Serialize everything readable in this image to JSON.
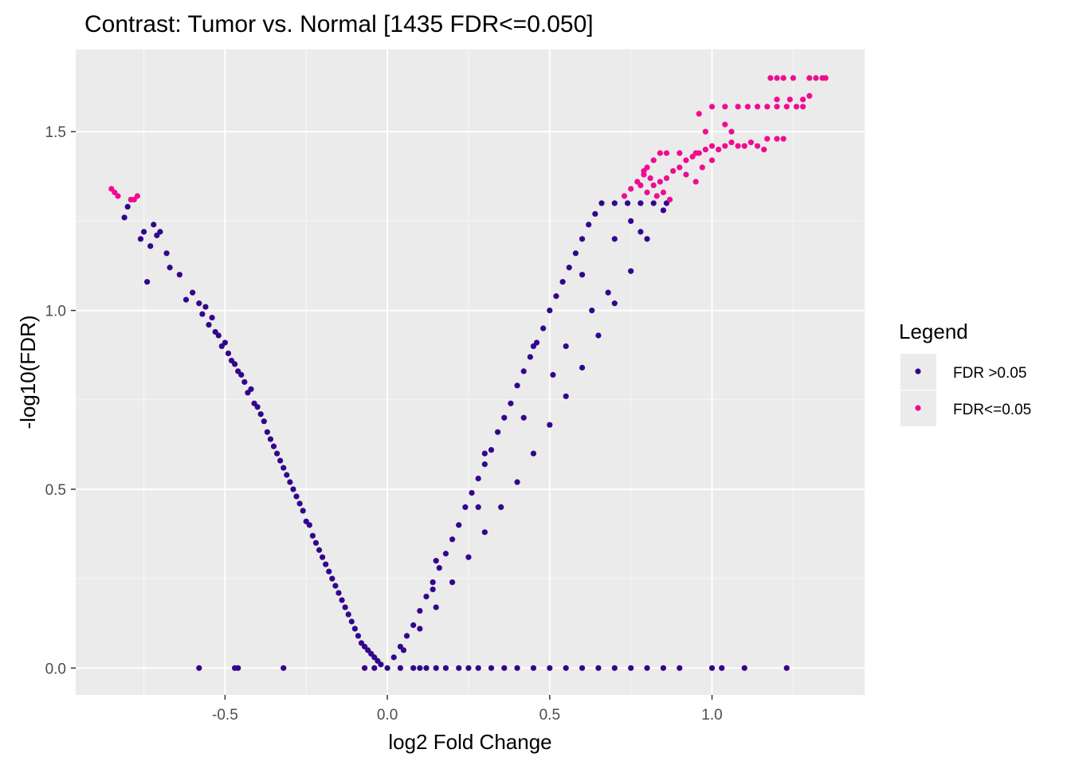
{
  "chart_data": {
    "type": "scatter",
    "title": "Contrast: Tumor vs. Normal  [1435 FDR<=0.050]",
    "xlabel": "log2 Fold Change",
    "ylabel": "-log10(FDR)",
    "xlim": [
      -0.96,
      1.47
    ],
    "ylim": [
      -0.075,
      1.73
    ],
    "x_ticks": [
      -0.5,
      0.0,
      0.5,
      1.0
    ],
    "x_tick_labels": [
      "-0.5",
      "0.0",
      "0.5",
      "1.0"
    ],
    "y_ticks": [
      0.0,
      0.5,
      1.0,
      1.5
    ],
    "y_tick_labels": [
      "0.0",
      "0.5",
      "1.0",
      "1.5"
    ],
    "grid": true,
    "panel_background": "#ebebeb",
    "legend": {
      "title": "Legend",
      "position": "right",
      "entries": [
        {
          "label": "FDR >0.05",
          "color": "#33058c"
        },
        {
          "label": "FDR<=0.05",
          "color": "#f00c8f"
        }
      ]
    },
    "series": [
      {
        "name": "FDR >0.05",
        "color": "#33058c",
        "points": [
          [
            -0.58,
            0.0
          ],
          [
            -0.47,
            0.0
          ],
          [
            -0.46,
            0.0
          ],
          [
            -0.32,
            0.0
          ],
          [
            -0.07,
            0.0
          ],
          [
            -0.04,
            0.0
          ],
          [
            0.04,
            0.0
          ],
          [
            0.08,
            0.0
          ],
          [
            0.1,
            0.0
          ],
          [
            0.12,
            0.0
          ],
          [
            0.15,
            0.0
          ],
          [
            0.18,
            0.0
          ],
          [
            0.22,
            0.0
          ],
          [
            0.25,
            0.0
          ],
          [
            0.28,
            0.0
          ],
          [
            0.32,
            0.0
          ],
          [
            0.36,
            0.0
          ],
          [
            0.4,
            0.0
          ],
          [
            0.45,
            0.0
          ],
          [
            0.5,
            0.0
          ],
          [
            0.55,
            0.0
          ],
          [
            0.6,
            0.0
          ],
          [
            0.65,
            0.0
          ],
          [
            0.7,
            0.0
          ],
          [
            0.75,
            0.0
          ],
          [
            0.8,
            0.0
          ],
          [
            0.85,
            0.0
          ],
          [
            0.9,
            0.0
          ],
          [
            1.0,
            0.0
          ],
          [
            1.03,
            0.0
          ],
          [
            1.1,
            0.0
          ],
          [
            1.23,
            0.0
          ],
          [
            -0.81,
            1.26
          ],
          [
            -0.8,
            1.29
          ],
          [
            -0.76,
            1.2
          ],
          [
            -0.75,
            1.22
          ],
          [
            -0.73,
            1.18
          ],
          [
            -0.72,
            1.24
          ],
          [
            -0.71,
            1.21
          ],
          [
            -0.7,
            1.22
          ],
          [
            -0.74,
            1.08
          ],
          [
            -0.68,
            1.16
          ],
          [
            -0.67,
            1.12
          ],
          [
            -0.64,
            1.1
          ],
          [
            -0.62,
            1.03
          ],
          [
            -0.6,
            1.05
          ],
          [
            -0.58,
            1.02
          ],
          [
            -0.57,
            0.99
          ],
          [
            -0.56,
            1.01
          ],
          [
            -0.55,
            0.96
          ],
          [
            -0.54,
            0.98
          ],
          [
            -0.53,
            0.94
          ],
          [
            -0.52,
            0.93
          ],
          [
            -0.51,
            0.9
          ],
          [
            -0.5,
            0.91
          ],
          [
            -0.49,
            0.88
          ],
          [
            -0.48,
            0.86
          ],
          [
            -0.47,
            0.85
          ],
          [
            -0.46,
            0.83
          ],
          [
            -0.45,
            0.82
          ],
          [
            -0.44,
            0.8
          ],
          [
            -0.43,
            0.77
          ],
          [
            -0.42,
            0.78
          ],
          [
            -0.41,
            0.74
          ],
          [
            -0.4,
            0.73
          ],
          [
            -0.39,
            0.71
          ],
          [
            -0.38,
            0.69
          ],
          [
            -0.37,
            0.66
          ],
          [
            -0.36,
            0.64
          ],
          [
            -0.35,
            0.62
          ],
          [
            -0.34,
            0.6
          ],
          [
            -0.33,
            0.58
          ],
          [
            -0.32,
            0.56
          ],
          [
            -0.31,
            0.54
          ],
          [
            -0.3,
            0.52
          ],
          [
            -0.29,
            0.5
          ],
          [
            -0.28,
            0.48
          ],
          [
            -0.27,
            0.46
          ],
          [
            -0.26,
            0.44
          ],
          [
            -0.25,
            0.41
          ],
          [
            -0.24,
            0.4
          ],
          [
            -0.23,
            0.37
          ],
          [
            -0.22,
            0.35
          ],
          [
            -0.21,
            0.33
          ],
          [
            -0.2,
            0.31
          ],
          [
            -0.19,
            0.29
          ],
          [
            -0.18,
            0.27
          ],
          [
            -0.17,
            0.25
          ],
          [
            -0.16,
            0.23
          ],
          [
            -0.15,
            0.21
          ],
          [
            -0.14,
            0.19
          ],
          [
            -0.13,
            0.17
          ],
          [
            -0.12,
            0.15
          ],
          [
            -0.11,
            0.13
          ],
          [
            -0.1,
            0.11
          ],
          [
            -0.09,
            0.09
          ],
          [
            -0.08,
            0.07
          ],
          [
            -0.07,
            0.06
          ],
          [
            -0.06,
            0.05
          ],
          [
            -0.05,
            0.04
          ],
          [
            -0.04,
            0.03
          ],
          [
            -0.03,
            0.02
          ],
          [
            -0.02,
            0.01
          ],
          [
            0.0,
            0.0
          ],
          [
            0.02,
            0.03
          ],
          [
            0.04,
            0.06
          ],
          [
            0.06,
            0.09
          ],
          [
            0.08,
            0.12
          ],
          [
            0.1,
            0.16
          ],
          [
            0.12,
            0.2
          ],
          [
            0.14,
            0.24
          ],
          [
            0.16,
            0.28
          ],
          [
            0.18,
            0.32
          ],
          [
            0.2,
            0.36
          ],
          [
            0.22,
            0.4
          ],
          [
            0.24,
            0.45
          ],
          [
            0.26,
            0.49
          ],
          [
            0.28,
            0.53
          ],
          [
            0.3,
            0.57
          ],
          [
            0.32,
            0.61
          ],
          [
            0.34,
            0.66
          ],
          [
            0.36,
            0.7
          ],
          [
            0.38,
            0.74
          ],
          [
            0.4,
            0.79
          ],
          [
            0.42,
            0.83
          ],
          [
            0.44,
            0.87
          ],
          [
            0.46,
            0.91
          ],
          [
            0.48,
            0.95
          ],
          [
            0.5,
            1.0
          ],
          [
            0.52,
            1.04
          ],
          [
            0.54,
            1.08
          ],
          [
            0.56,
            1.12
          ],
          [
            0.58,
            1.16
          ],
          [
            0.6,
            1.2
          ],
          [
            0.62,
            1.24
          ],
          [
            0.64,
            1.27
          ],
          [
            0.66,
            1.3
          ],
          [
            0.7,
            1.3
          ],
          [
            0.74,
            1.3
          ],
          [
            0.78,
            1.3
          ],
          [
            0.82,
            1.3
          ],
          [
            0.86,
            1.3
          ],
          [
            0.85,
            1.28
          ],
          [
            0.8,
            1.2
          ],
          [
            0.75,
            1.11
          ],
          [
            0.7,
            1.02
          ],
          [
            0.65,
            0.93
          ],
          [
            0.6,
            0.84
          ],
          [
            0.55,
            0.76
          ],
          [
            0.5,
            0.68
          ],
          [
            0.45,
            0.6
          ],
          [
            0.4,
            0.52
          ],
          [
            0.35,
            0.45
          ],
          [
            0.3,
            0.38
          ],
          [
            0.25,
            0.31
          ],
          [
            0.2,
            0.24
          ],
          [
            0.15,
            0.17
          ],
          [
            0.1,
            0.11
          ],
          [
            0.05,
            0.05
          ],
          [
            0.15,
            0.3
          ],
          [
            0.3,
            0.6
          ],
          [
            0.45,
            0.9
          ],
          [
            0.6,
            1.1
          ],
          [
            0.7,
            1.2
          ],
          [
            0.75,
            1.25
          ],
          [
            0.78,
            1.22
          ],
          [
            0.68,
            1.05
          ],
          [
            0.55,
            0.9
          ],
          [
            0.42,
            0.7
          ],
          [
            0.28,
            0.45
          ],
          [
            0.14,
            0.22
          ],
          [
            0.51,
            0.82
          ],
          [
            0.63,
            1.0
          ]
        ]
      },
      {
        "name": "FDR<=0.05",
        "color": "#f00c8f",
        "points": [
          [
            -0.85,
            1.34
          ],
          [
            -0.84,
            1.33
          ],
          [
            -0.83,
            1.32
          ],
          [
            -0.79,
            1.31
          ],
          [
            -0.78,
            1.31
          ],
          [
            -0.77,
            1.32
          ],
          [
            0.73,
            1.32
          ],
          [
            0.75,
            1.34
          ],
          [
            0.77,
            1.36
          ],
          [
            0.79,
            1.38
          ],
          [
            0.8,
            1.4
          ],
          [
            0.82,
            1.42
          ],
          [
            0.84,
            1.44
          ],
          [
            0.78,
            1.35
          ],
          [
            0.8,
            1.33
          ],
          [
            0.82,
            1.35
          ],
          [
            0.84,
            1.36
          ],
          [
            0.86,
            1.37
          ],
          [
            0.88,
            1.39
          ],
          [
            0.9,
            1.4
          ],
          [
            0.92,
            1.42
          ],
          [
            0.94,
            1.43
          ],
          [
            0.96,
            1.44
          ],
          [
            0.98,
            1.45
          ],
          [
            1.0,
            1.46
          ],
          [
            1.02,
            1.45
          ],
          [
            1.04,
            1.46
          ],
          [
            1.06,
            1.47
          ],
          [
            1.08,
            1.46
          ],
          [
            1.1,
            1.46
          ],
          [
            1.12,
            1.47
          ],
          [
            1.14,
            1.46
          ],
          [
            1.16,
            1.45
          ],
          [
            1.17,
            1.48
          ],
          [
            1.2,
            1.48
          ],
          [
            1.22,
            1.48
          ],
          [
            0.86,
            1.44
          ],
          [
            0.9,
            1.44
          ],
          [
            0.95,
            1.44
          ],
          [
            0.85,
            1.33
          ],
          [
            0.87,
            1.31
          ],
          [
            0.83,
            1.32
          ],
          [
            0.81,
            1.37
          ],
          [
            0.79,
            1.39
          ],
          [
            0.92,
            1.38
          ],
          [
            0.95,
            1.36
          ],
          [
            0.97,
            1.4
          ],
          [
            1.0,
            1.42
          ],
          [
            0.98,
            1.5
          ],
          [
            1.04,
            1.52
          ],
          [
            1.06,
            1.5
          ],
          [
            0.96,
            1.55
          ],
          [
            1.0,
            1.57
          ],
          [
            1.04,
            1.57
          ],
          [
            1.08,
            1.57
          ],
          [
            1.11,
            1.57
          ],
          [
            1.14,
            1.57
          ],
          [
            1.17,
            1.57
          ],
          [
            1.2,
            1.57
          ],
          [
            1.23,
            1.57
          ],
          [
            1.26,
            1.57
          ],
          [
            1.28,
            1.57
          ],
          [
            1.2,
            1.59
          ],
          [
            1.24,
            1.59
          ],
          [
            1.28,
            1.59
          ],
          [
            1.3,
            1.6
          ],
          [
            1.18,
            1.65
          ],
          [
            1.2,
            1.65
          ],
          [
            1.22,
            1.65
          ],
          [
            1.25,
            1.65
          ],
          [
            1.3,
            1.65
          ],
          [
            1.32,
            1.65
          ],
          [
            1.34,
            1.65
          ],
          [
            1.35,
            1.65
          ]
        ]
      }
    ]
  }
}
